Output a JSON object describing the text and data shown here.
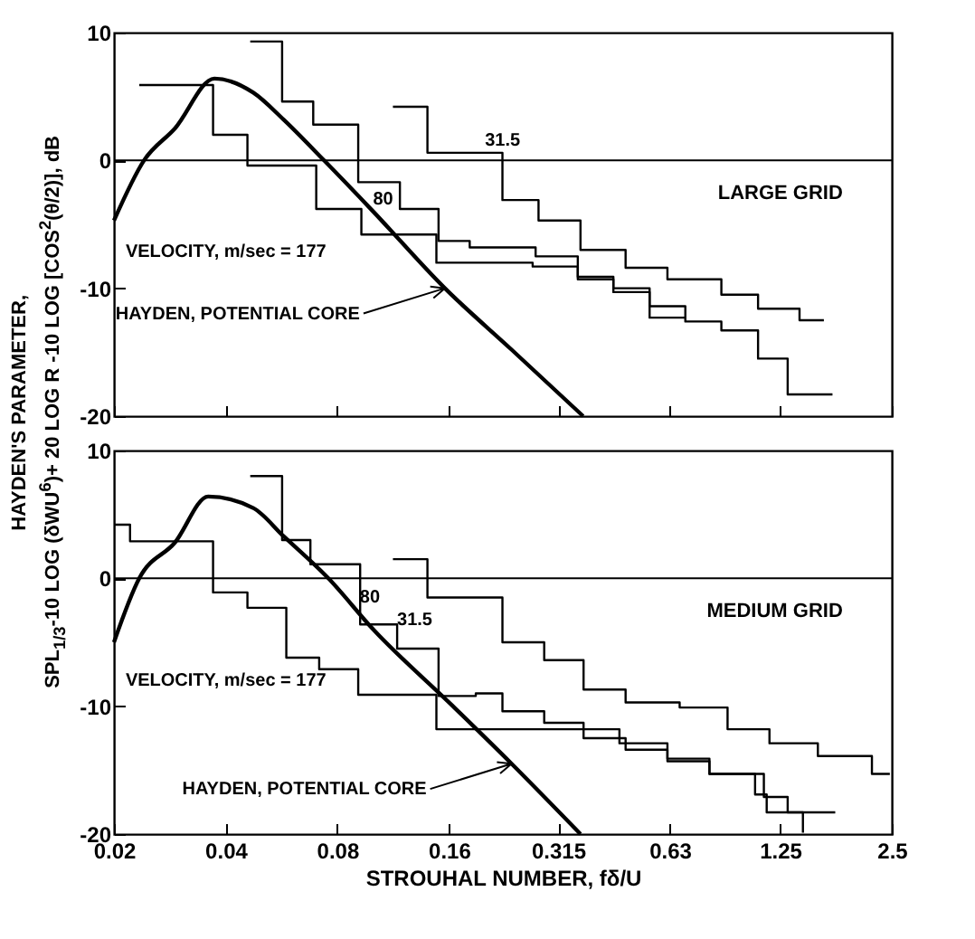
{
  "chart_data": [
    {
      "type": "step",
      "ylabel": "HAYDEN'S PARAMETER, SPL$_{1/3}$-10 LOG (δWU$^{6}$)+ 20 LOG R -10 LOG [COS$^{2}$(θ/2)], dB",
      "xlim": [
        0.02,
        2.5
      ],
      "xticks": [
        0.02,
        0.04,
        0.08,
        0.16,
        0.315,
        0.63,
        1.25,
        2.5
      ],
      "ylim": [
        -20,
        10
      ],
      "yticks": [
        -20,
        -10,
        0,
        10
      ],
      "log": "x",
      "tick_labels": "y",
      "ref_lines": [
        {
          "axis": "y",
          "value": 0
        }
      ],
      "annotations": [
        "VELOCITY, m/sec = 177",
        "80",
        "31.5",
        {
          "text": "HAYDEN, POTENTIAL CORE",
          "x": 0.156,
          "y": -10
        },
        "LARGE GRID"
      ],
      "series": [
        {
          "type": "line",
          "color": "#000000",
          "x": [
            0.02,
            0.0241,
            0.0292,
            0.0373,
            0.0475,
            0.0573,
            0.0737,
            0.1,
            0.156,
            0.236,
            0.368
          ],
          "values": [
            -4.7,
            0,
            2.5,
            6.4,
            5.3,
            3.2,
            0,
            -4,
            -10,
            -14.8,
            -20
          ]
        },
        {
          "color": "#000000",
          "x": [
            0.0234,
            0.037,
            0.0458,
            0.0702,
            0.0929,
            0.148,
            0.269,
            0.356,
            0.444,
            0.556,
            0.694,
            0.868,
            1.09,
            1.31,
            1.73
          ],
          "values": [
            5.9,
            2.0,
            -0.4,
            -3.8,
            -5.8,
            -8.0,
            -8.3,
            -9.3,
            -10.0,
            -11.4,
            -12.6,
            -13.3,
            -15.5,
            -18.3,
            -18.3
          ]
        },
        {
          "color": "#000000",
          "x": [
            0.0466,
            0.0568,
            0.0689,
            0.0911,
            0.118,
            0.15,
            0.182,
            0.274,
            0.356,
            0.444,
            0.556,
            0.694
          ],
          "values": [
            9.3,
            4.6,
            2.8,
            -1.7,
            -3.8,
            -6.3,
            -6.8,
            -7.5,
            -9.1,
            -10.3,
            -12.3,
            -12.3
          ]
        },
        {
          "color": "#000000",
          "x": [
            0.113,
            0.14,
            0.223,
            0.279,
            0.362,
            0.479,
            0.621,
            0.868,
            1.09,
            1.41,
            1.64
          ],
          "values": [
            4.2,
            0.6,
            -3.1,
            -4.7,
            -7.0,
            -8.4,
            -9.3,
            -10.5,
            -11.6,
            -12.5,
            -12.5
          ]
        }
      ]
    },
    {
      "type": "step",
      "xlabel": "STROUHAL NUMBER, fδ/U",
      "xlim": [
        0.02,
        2.5
      ],
      "xticks": [
        0.02,
        0.04,
        0.08,
        0.16,
        0.315,
        0.63,
        1.25,
        2.5
      ],
      "ylim": [
        -20,
        10
      ],
      "yticks": [
        -20,
        -10,
        0,
        10
      ],
      "log": "x",
      "ref_lines": [
        {
          "axis": "y",
          "value": 0
        }
      ],
      "annotations": [
        "VELOCITY, m/sec = 177",
        "80",
        "31.5",
        {
          "text": "HAYDEN, POTENTIAL CORE",
          "x": 0.236,
          "y": -14.5
        },
        "MEDIUM GRID"
      ],
      "series": [
        {
          "type": "line",
          "color": "#000000",
          "x": [
            0.02,
            0.0234,
            0.0292,
            0.0359,
            0.0475,
            0.0573,
            0.0757,
            0.1,
            0.164,
            0.236,
            0.362
          ],
          "values": [
            -5,
            0,
            2.8,
            6.4,
            5.5,
            3.3,
            0,
            -4,
            -10,
            -14.5,
            -20
          ]
        },
        {
          "color": "#000000",
          "x": [
            0.02,
            0.0221,
            0.037,
            0.0458,
            0.0583,
            0.0715,
            0.0911,
            0.148,
            0.461,
            0.621,
            0.806,
            1.07,
            1.15,
            1.44
          ],
          "values": [
            4.2,
            2.9,
            -1.1,
            -2.3,
            -6.2,
            -7.1,
            -9.1,
            -11.8,
            -12.9,
            -14.1,
            -15.3,
            -16.9,
            -18.3,
            -19.9
          ]
        },
        {
          "color": "#000000",
          "x": [
            0.0466,
            0.0568,
            0.0677,
            0.0922,
            0.116,
            0.15,
            0.189,
            0.223,
            0.289,
            0.369,
            0.479,
            0.621,
            0.806,
            1.13,
            1.31,
            1.76
          ],
          "values": [
            8.0,
            3.0,
            1.1,
            -3.6,
            -5.5,
            -9.2,
            -9.0,
            -10.4,
            -11.3,
            -12.5,
            -13.4,
            -14.3,
            -15.3,
            -17.1,
            -18.3,
            -18.3
          ]
        },
        {
          "color": "#000000",
          "x": [
            0.113,
            0.14,
            0.223,
            0.289,
            0.369,
            0.479,
            0.67,
            0.902,
            1.17,
            1.58,
            2.21,
            2.47
          ],
          "values": [
            1.5,
            -1.5,
            -5.0,
            -6.4,
            -8.7,
            -9.7,
            -10.1,
            -11.8,
            -12.9,
            -13.9,
            -15.3,
            -15.3
          ]
        }
      ]
    }
  ]
}
